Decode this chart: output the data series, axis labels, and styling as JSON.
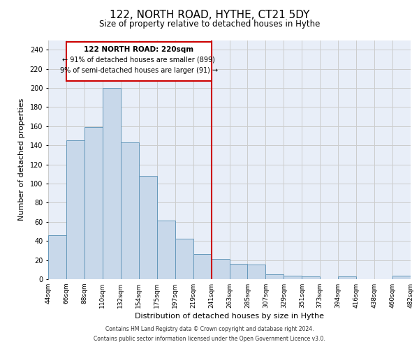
{
  "title": "122, NORTH ROAD, HYTHE, CT21 5DY",
  "subtitle": "Size of property relative to detached houses in Hythe",
  "xlabel": "Distribution of detached houses by size in Hythe",
  "ylabel": "Number of detached properties",
  "bar_labels": [
    "44sqm",
    "66sqm",
    "88sqm",
    "110sqm",
    "132sqm",
    "154sqm",
    "175sqm",
    "197sqm",
    "219sqm",
    "241sqm",
    "263sqm",
    "285sqm",
    "307sqm",
    "329sqm",
    "351sqm",
    "373sqm",
    "394sqm",
    "416sqm",
    "438sqm",
    "460sqm",
    "482sqm"
  ],
  "bar_values": [
    46,
    145,
    159,
    200,
    143,
    108,
    61,
    42,
    26,
    21,
    16,
    15,
    5,
    4,
    3,
    0,
    3,
    0,
    0,
    4
  ],
  "bar_color": "#c8d8ea",
  "bar_edge_color": "#6699bb",
  "grid_color": "#cccccc",
  "background_color": "#e8eef8",
  "annotation_box_edge": "#cc0000",
  "vline_color": "#cc0000",
  "vline_x_index": 8,
  "annotation_title": "122 NORTH ROAD: 220sqm",
  "annotation_line1": "← 91% of detached houses are smaller (899)",
  "annotation_line2": "9% of semi-detached houses are larger (91) →",
  "ylim": [
    0,
    250
  ],
  "yticks": [
    0,
    20,
    40,
    60,
    80,
    100,
    120,
    140,
    160,
    180,
    200,
    220,
    240
  ],
  "footer1": "Contains HM Land Registry data © Crown copyright and database right 2024.",
  "footer2": "Contains public sector information licensed under the Open Government Licence v3.0."
}
